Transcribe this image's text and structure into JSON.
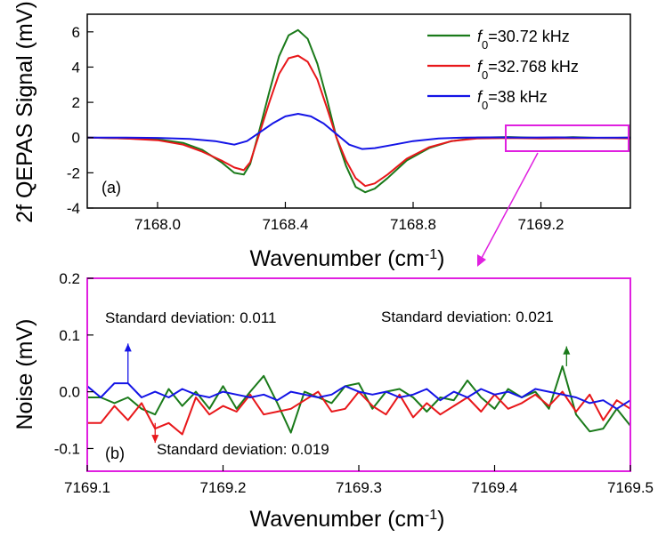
{
  "chart_data": [
    {
      "panel": "(a)",
      "type": "line",
      "xlabel": "Wavenumber (cm",
      "xlabel_sup": "-1",
      "xlabel_tail": ")",
      "ylabel": "2f QEPAS Signal (mV)",
      "xlim": [
        7167.78,
        7169.48
      ],
      "ylim": [
        -4,
        7
      ],
      "xticks": [
        7168.0,
        7168.4,
        7168.8,
        7169.2
      ],
      "xtick_labels": [
        "7168.0",
        "7168.4",
        "7168.8",
        "7169.2"
      ],
      "yticks": [
        -4,
        -2,
        0,
        2,
        4,
        6
      ],
      "ytick_labels": [
        "-4",
        "-2",
        "0",
        "2",
        "4",
        "6"
      ],
      "legend_position": "top-right",
      "series": [
        {
          "name_prefix": "f",
          "name_sub": "0",
          "name_suffix": "=30.72 kHz",
          "color": "#1a7a1a",
          "x": [
            7167.78,
            7167.9,
            7168.0,
            7168.08,
            7168.14,
            7168.2,
            7168.24,
            7168.27,
            7168.29,
            7168.32,
            7168.35,
            7168.38,
            7168.41,
            7168.44,
            7168.47,
            7168.5,
            7168.53,
            7168.56,
            7168.59,
            7168.62,
            7168.65,
            7168.68,
            7168.72,
            7168.78,
            7168.85,
            7168.92,
            7169.0,
            7169.1,
            7169.2,
            7169.3,
            7169.4,
            7169.48
          ],
          "y": [
            0.0,
            -0.05,
            -0.1,
            -0.3,
            -0.7,
            -1.4,
            -2.0,
            -2.1,
            -1.5,
            0.5,
            2.6,
            4.6,
            5.8,
            6.1,
            5.6,
            4.2,
            2.2,
            0.0,
            -1.6,
            -2.8,
            -3.1,
            -2.9,
            -2.3,
            -1.3,
            -0.6,
            -0.2,
            0.0,
            0.03,
            -0.02,
            0.02,
            -0.03,
            0.0
          ]
        },
        {
          "name_prefix": "f",
          "name_sub": "0",
          "name_suffix": "=32.768 kHz",
          "color": "#e8171a",
          "x": [
            7167.78,
            7167.9,
            7168.0,
            7168.08,
            7168.14,
            7168.2,
            7168.24,
            7168.27,
            7168.29,
            7168.32,
            7168.35,
            7168.38,
            7168.41,
            7168.44,
            7168.47,
            7168.5,
            7168.53,
            7168.56,
            7168.59,
            7168.62,
            7168.65,
            7168.68,
            7168.72,
            7168.78,
            7168.85,
            7168.92,
            7169.0,
            7169.1,
            7169.2,
            7169.3,
            7169.4,
            7169.48
          ],
          "y": [
            0.0,
            -0.05,
            -0.15,
            -0.4,
            -0.8,
            -1.3,
            -1.7,
            -1.85,
            -1.4,
            0.3,
            2.0,
            3.6,
            4.5,
            4.65,
            4.3,
            3.3,
            1.7,
            0.0,
            -1.3,
            -2.3,
            -2.75,
            -2.6,
            -2.1,
            -1.2,
            -0.55,
            -0.2,
            -0.05,
            -0.03,
            -0.05,
            -0.04,
            -0.03,
            -0.05
          ]
        },
        {
          "name_prefix": "f",
          "name_sub": "0",
          "name_suffix": "=38 kHz",
          "color": "#1414e6",
          "x": [
            7167.78,
            7167.9,
            7168.0,
            7168.1,
            7168.18,
            7168.24,
            7168.28,
            7168.32,
            7168.36,
            7168.4,
            7168.44,
            7168.48,
            7168.52,
            7168.56,
            7168.6,
            7168.64,
            7168.68,
            7168.74,
            7168.8,
            7168.88,
            7168.96,
            7169.05,
            7169.15,
            7169.25,
            7169.35,
            7169.48
          ],
          "y": [
            0.0,
            0.0,
            -0.02,
            -0.08,
            -0.2,
            -0.4,
            -0.2,
            0.3,
            0.8,
            1.2,
            1.35,
            1.2,
            0.8,
            0.2,
            -0.4,
            -0.65,
            -0.6,
            -0.4,
            -0.2,
            -0.05,
            0.0,
            0.01,
            0.0,
            0.01,
            -0.01,
            0.0
          ]
        }
      ]
    },
    {
      "panel": "(b)",
      "type": "line",
      "xlabel": "Wavenumber (cm",
      "xlabel_sup": "-1",
      "xlabel_tail": ")",
      "ylabel": "Noise (mV)",
      "xlim": [
        7169.1,
        7169.5
      ],
      "ylim": [
        -0.14,
        0.2
      ],
      "xticks": [
        7169.1,
        7169.2,
        7169.3,
        7169.4,
        7169.5
      ],
      "xtick_labels": [
        "7169.1",
        "7169.2",
        "7169.3",
        "7169.4",
        "7169.5"
      ],
      "yticks": [
        -0.1,
        0.0,
        0.1,
        0.2
      ],
      "ytick_labels": [
        "-0.1",
        "0.0",
        "0.1",
        "0.2"
      ],
      "annotations": [
        {
          "text": "Standard deviation: 0.011",
          "color": "#1414e6",
          "arrow_x": 7169.13,
          "arrow_from": 0.015,
          "arrow_to": 0.085
        },
        {
          "text": "Standard deviation: 0.021",
          "color": "#1a7a1a",
          "arrow_x": 7169.453,
          "arrow_from": 0.045,
          "arrow_to": 0.08
        },
        {
          "text": "Standard deviation: 0.019",
          "color": "#e8171a",
          "arrow_x": 7169.15,
          "arrow_from": -0.055,
          "arrow_to": -0.09
        }
      ],
      "series": [
        {
          "name": "f0=30.72 kHz",
          "color": "#1a7a1a",
          "x": [
            7169.1,
            7169.11,
            7169.12,
            7169.13,
            7169.14,
            7169.15,
            7169.16,
            7169.17,
            7169.18,
            7169.19,
            7169.2,
            7169.21,
            7169.22,
            7169.23,
            7169.24,
            7169.25,
            7169.26,
            7169.27,
            7169.28,
            7169.29,
            7169.3,
            7169.31,
            7169.32,
            7169.33,
            7169.34,
            7169.35,
            7169.36,
            7169.37,
            7169.38,
            7169.39,
            7169.4,
            7169.41,
            7169.42,
            7169.43,
            7169.44,
            7169.45,
            7169.46,
            7169.47,
            7169.48,
            7169.49,
            7169.5
          ],
          "y": [
            -0.01,
            -0.01,
            -0.02,
            -0.01,
            -0.03,
            -0.04,
            0.005,
            -0.025,
            0.0,
            -0.03,
            0.01,
            -0.03,
            0.0,
            0.028,
            -0.02,
            -0.072,
            0.0,
            -0.01,
            -0.02,
            0.01,
            0.015,
            -0.03,
            0.0,
            0.005,
            -0.01,
            -0.035,
            -0.01,
            -0.015,
            0.02,
            -0.01,
            -0.03,
            0.005,
            -0.01,
            0.0,
            -0.03,
            0.045,
            -0.04,
            -0.07,
            -0.065,
            -0.03,
            -0.06
          ]
        },
        {
          "name": "f0=32.768 kHz",
          "color": "#e8171a",
          "x": [
            7169.1,
            7169.11,
            7169.12,
            7169.13,
            7169.14,
            7169.15,
            7169.16,
            7169.17,
            7169.18,
            7169.19,
            7169.2,
            7169.21,
            7169.22,
            7169.23,
            7169.24,
            7169.25,
            7169.26,
            7169.27,
            7169.28,
            7169.29,
            7169.3,
            7169.31,
            7169.32,
            7169.33,
            7169.34,
            7169.35,
            7169.36,
            7169.37,
            7169.38,
            7169.39,
            7169.4,
            7169.41,
            7169.42,
            7169.43,
            7169.44,
            7169.45,
            7169.46,
            7169.47,
            7169.48,
            7169.49,
            7169.5
          ],
          "y": [
            -0.055,
            -0.055,
            -0.025,
            -0.05,
            -0.02,
            -0.065,
            -0.055,
            -0.075,
            -0.01,
            -0.04,
            -0.025,
            -0.035,
            -0.005,
            -0.04,
            -0.035,
            -0.03,
            -0.015,
            0.0,
            -0.035,
            -0.03,
            0.0,
            -0.025,
            -0.04,
            -0.005,
            -0.045,
            -0.02,
            -0.04,
            -0.025,
            -0.01,
            -0.035,
            -0.005,
            -0.03,
            -0.02,
            -0.005,
            -0.025,
            0.0,
            -0.035,
            -0.005,
            -0.05,
            -0.015,
            -0.03
          ]
        },
        {
          "name": "f0=38 kHz",
          "color": "#1414e6",
          "x": [
            7169.1,
            7169.11,
            7169.12,
            7169.13,
            7169.14,
            7169.15,
            7169.16,
            7169.17,
            7169.18,
            7169.19,
            7169.2,
            7169.21,
            7169.22,
            7169.23,
            7169.24,
            7169.25,
            7169.26,
            7169.27,
            7169.28,
            7169.29,
            7169.3,
            7169.31,
            7169.32,
            7169.33,
            7169.34,
            7169.35,
            7169.36,
            7169.37,
            7169.38,
            7169.39,
            7169.4,
            7169.41,
            7169.42,
            7169.43,
            7169.44,
            7169.45,
            7169.46,
            7169.47,
            7169.48,
            7169.49,
            7169.5
          ],
          "y": [
            0.01,
            -0.01,
            0.015,
            0.015,
            -0.01,
            0.0,
            -0.01,
            0.005,
            -0.005,
            -0.01,
            0.0,
            -0.005,
            -0.01,
            -0.005,
            -0.015,
            0.0,
            -0.005,
            -0.01,
            -0.005,
            0.01,
            0.0,
            -0.005,
            0.0,
            -0.01,
            -0.005,
            0.005,
            -0.015,
            0.0,
            -0.01,
            0.005,
            -0.005,
            0.0,
            -0.01,
            0.005,
            0.0,
            -0.005,
            -0.01,
            -0.02,
            -0.015,
            -0.03,
            -0.015
          ]
        }
      ]
    }
  ]
}
